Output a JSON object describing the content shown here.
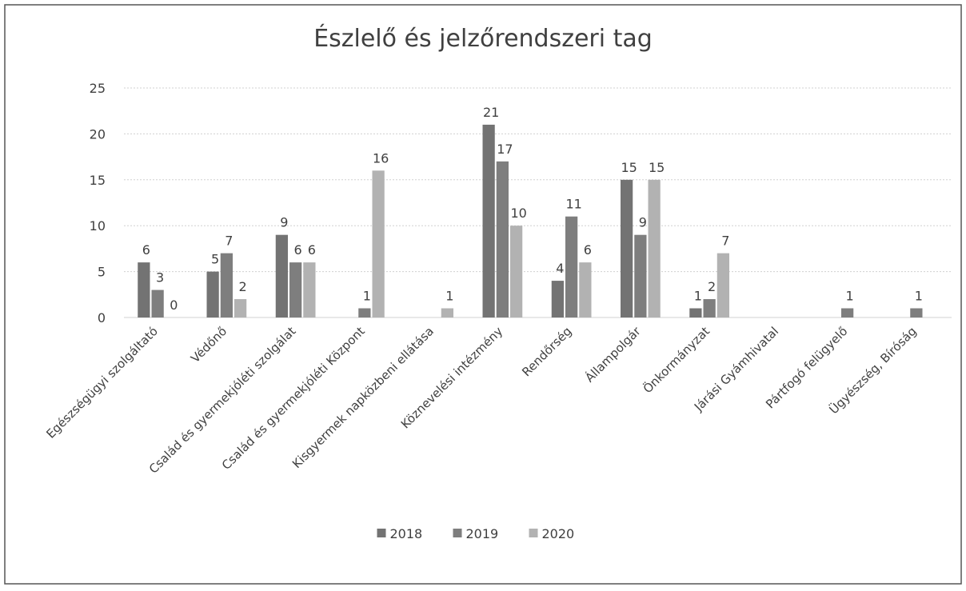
{
  "chart_data": {
    "type": "bar",
    "title": "Észlelő és jelzőrendszeri tag",
    "categories": [
      "Egészségügyi szolgáltató",
      "Védőnő",
      "Család és gyermekjóléti szolgálat",
      "Család és gyermekjóléti Központ",
      "Kisgyermek napközbeni ellátása",
      "Köznevelési intézmény",
      "Rendőrség",
      "Állampolgár",
      "Önkormányzat",
      "Járási Gyámhivatal",
      "Pártfogó felügyelő",
      "Ügyészség, Bíróság"
    ],
    "series": [
      {
        "name": "2018",
        "color": "#737373",
        "values": [
          6,
          5,
          9,
          null,
          null,
          21,
          4,
          15,
          1,
          null,
          null,
          null
        ]
      },
      {
        "name": "2019",
        "color": "#7e7e7e",
        "values": [
          3,
          7,
          6,
          1,
          null,
          17,
          11,
          9,
          2,
          null,
          1,
          1
        ]
      },
      {
        "name": "2020",
        "color": "#b2b2b2",
        "values": [
          0,
          2,
          6,
          16,
          1,
          10,
          6,
          15,
          7,
          null,
          null,
          null
        ]
      }
    ],
    "ylim": [
      0,
      25
    ],
    "yticks": [
      0,
      5,
      10,
      15,
      20,
      25
    ],
    "grid": true,
    "legend": "bottom"
  }
}
